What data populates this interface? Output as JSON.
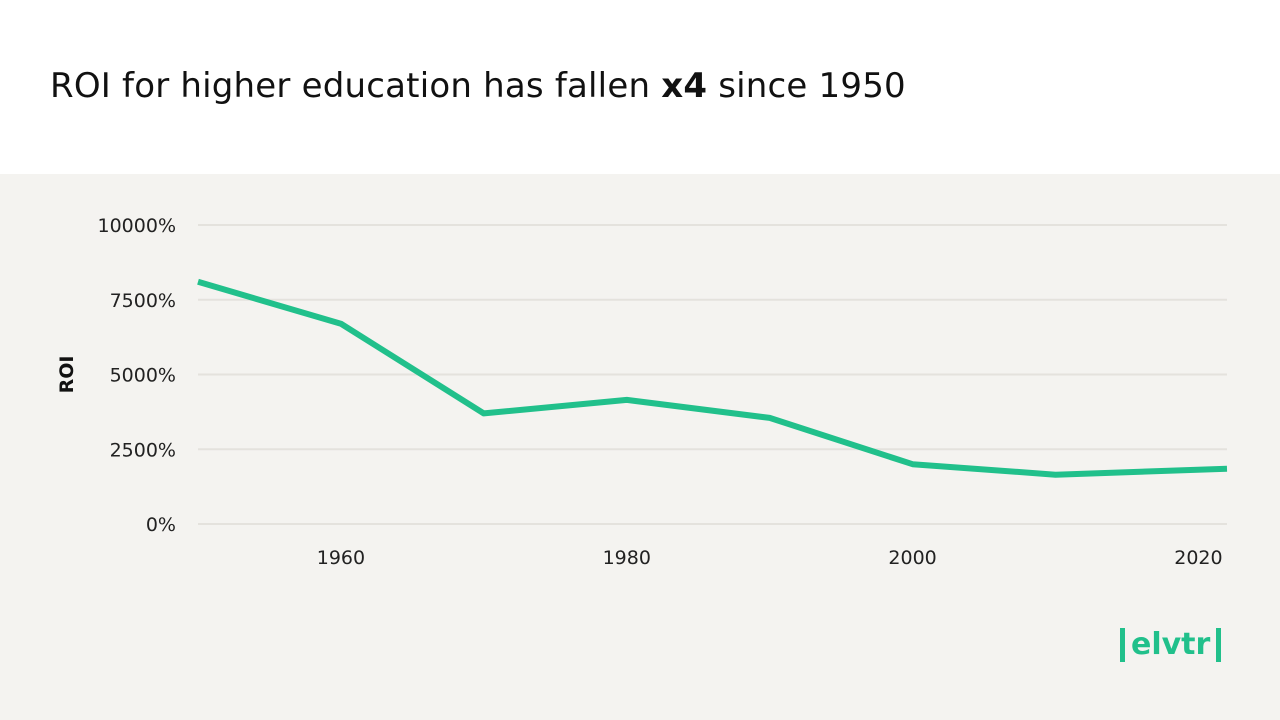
{
  "header": {
    "title_pre": "ROI for higher education has fallen ",
    "title_bold": "x4",
    "title_post": " since 1950"
  },
  "logo": {
    "text": "elvtr",
    "color": "#21c08b"
  },
  "chart_data": {
    "type": "line",
    "title": "ROI for higher education has fallen x4 since 1950",
    "xlabel": "",
    "ylabel": "ROI",
    "xlim": [
      1950,
      2022
    ],
    "ylim": [
      0,
      10000
    ],
    "x_ticks": [
      1960,
      1980,
      2000,
      2020
    ],
    "y_ticks": [
      0,
      2500,
      5000,
      7500,
      10000
    ],
    "y_tick_labels": [
      "0%",
      "2500%",
      "5000%",
      "7500%",
      "10000%"
    ],
    "grid": "horizontal",
    "line_color": "#21c08b",
    "series": [
      {
        "x": [
          1950,
          1960,
          1970,
          1980,
          1990,
          2000,
          2010,
          2022
        ],
        "y": [
          8100,
          6700,
          3700,
          4150,
          3550,
          2000,
          1650,
          1850
        ]
      }
    ]
  }
}
